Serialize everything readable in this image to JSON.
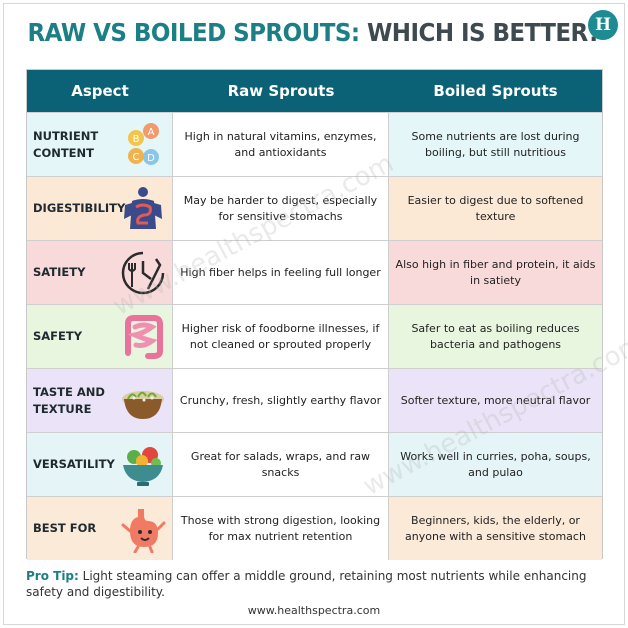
{
  "title": {
    "part1": "RAW VS BOILED SPROUTS:",
    "part2": "WHICH IS BETTER?"
  },
  "logo_letter": "H",
  "colors": {
    "title_teal": "#1c7f86",
    "title_dark": "#3e4a50",
    "header_bg": "#0b6176"
  },
  "table": {
    "headers": [
      "Aspect",
      "Raw Sprouts",
      "Boiled Sprouts"
    ],
    "rows": [
      {
        "aspect": "NUTRIENT CONTENT",
        "icon": "vitamins-icon",
        "raw": "High in natural vitamins, enzymes, and antioxidants",
        "boiled": "Some nutrients are lost during boiling, but still nutritious",
        "color": "#e4f6f7"
      },
      {
        "aspect": "DIGESTIBILITY",
        "icon": "digestive-system-icon",
        "raw": "May be harder to digest, especially for sensitive stomachs",
        "boiled": "Easier to digest due to softened texture",
        "color": "#fbe9d6"
      },
      {
        "aspect": "SATIETY",
        "icon": "clock-fork-knife-icon",
        "raw": "High fiber helps in feeling full longer",
        "boiled": "Also high in fiber and protein, it aids in satiety",
        "color": "#f9dada"
      },
      {
        "aspect": "SAFETY",
        "icon": "intestine-icon",
        "raw": "Higher risk of foodborne illnesses, if not cleaned or sprouted properly",
        "boiled": "Safer to eat as boiling reduces bacteria and pathogens",
        "color": "#e8f6e0"
      },
      {
        "aspect": "TASTE AND TEXTURE",
        "icon": "sprouts-bowl-icon",
        "raw": "Crunchy, fresh, slightly earthy flavor",
        "boiled": "Softer texture, more neutral flavor",
        "color": "#ebe3f7"
      },
      {
        "aspect": "VERSATILITY",
        "icon": "salad-bowl-icon",
        "raw": "Great for salads, wraps, and raw snacks",
        "boiled": "Works well in curries, poha, soups, and pulao",
        "color": "#e4f4f7"
      },
      {
        "aspect": "BEST FOR",
        "icon": "happy-stomach-icon",
        "raw": "Those with strong digestion, looking for max nutrient retention",
        "boiled": "Beginners, kids, the elderly, or anyone with a sensitive stomach",
        "color": "#fbead8"
      }
    ]
  },
  "watermark": "www.healthspectra.com",
  "tip": {
    "label": "Pro Tip:",
    "text": " Light steaming can offer a middle ground, retaining most nutrients while enhancing safety and digestibility."
  },
  "footer": "www.healthspectra.com"
}
